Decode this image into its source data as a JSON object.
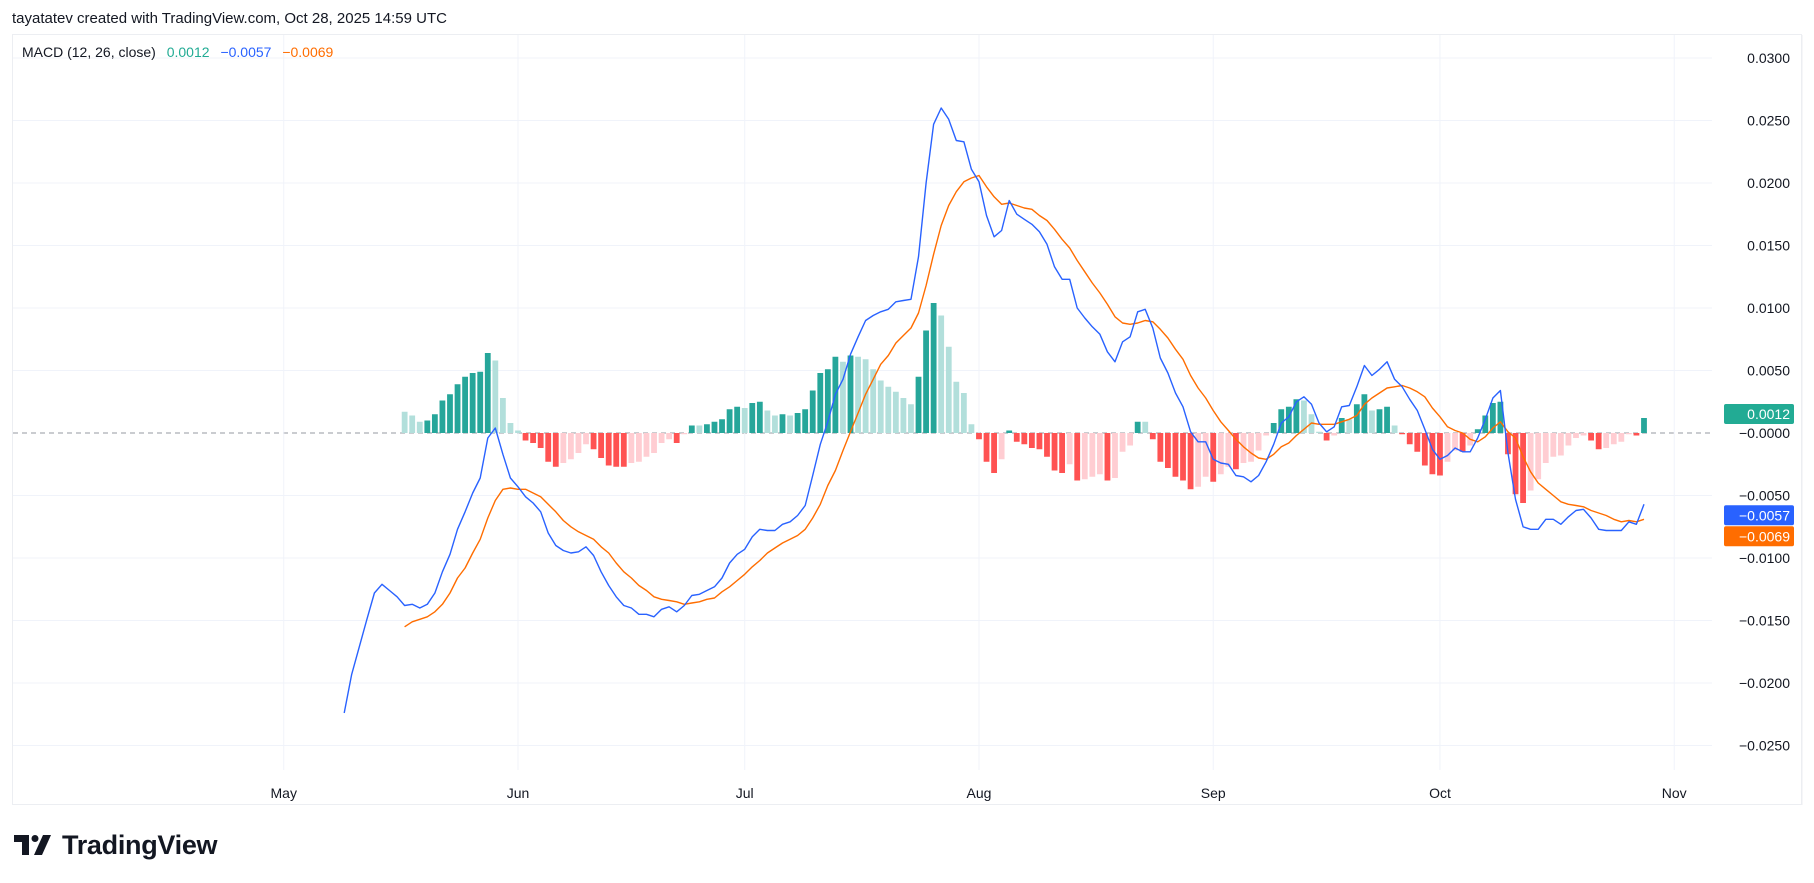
{
  "header": {
    "attribution": "tayatatev created with TradingView.com, Oct 28, 2025 14:59 UTC"
  },
  "legend": {
    "indicator": "MACD (12, 26, close)",
    "histogram_value": "0.0012",
    "macd_value": "−0.0057",
    "signal_value": "−0.0069"
  },
  "brand": {
    "name": "TradingView",
    "icon": "tradingview-logo-icon"
  },
  "colors": {
    "macd": "#2962ff",
    "signal": "#ff6d00",
    "hist_pos_grow": "#26a69a",
    "hist_pos_fall": "#b2dfdb",
    "hist_neg_fall": "#ff5252",
    "hist_neg_grow": "#ffcdd2",
    "last_hist_tag": "#22ab94"
  },
  "price_scale": {
    "last_tags": [
      {
        "label": "0.0012",
        "value": 0.0012,
        "color": "#22ab94"
      },
      {
        "label": "−0.0057",
        "value": -0.0057,
        "color": "#2962ff"
      },
      {
        "label": "−0.0069",
        "value": -0.0069,
        "color": "#ff6d00"
      }
    ]
  },
  "chart_data": {
    "type": "line+bar",
    "title": "MACD (12, 26, close)",
    "ylim": [
      -0.0275,
      0.0315
    ],
    "grid": true,
    "zero_line": "dashed",
    "y_ticks": [
      {
        "value": 0.03,
        "label": "0.0300"
      },
      {
        "value": 0.025,
        "label": "0.0250"
      },
      {
        "value": 0.02,
        "label": "0.0200"
      },
      {
        "value": 0.015,
        "label": "0.0150"
      },
      {
        "value": 0.01,
        "label": "0.0100"
      },
      {
        "value": 0.005,
        "label": "0.0050"
      },
      {
        "value": 0,
        "label": "−0.0000"
      },
      {
        "value": -0.005,
        "label": "−0.0050"
      },
      {
        "value": -0.01,
        "label": "−0.0100"
      },
      {
        "value": -0.015,
        "label": "−0.0150"
      },
      {
        "value": -0.02,
        "label": "−0.0200"
      },
      {
        "value": -0.025,
        "label": "−0.0250"
      }
    ],
    "x_ticks": [
      {
        "date": "2025-05-01",
        "label": "May"
      },
      {
        "date": "2025-06-01",
        "label": "Jun"
      },
      {
        "date": "2025-07-01",
        "label": "Jul"
      },
      {
        "date": "2025-08-01",
        "label": "Aug"
      },
      {
        "date": "2025-09-01",
        "label": "Sep"
      },
      {
        "date": "2025-10-01",
        "label": "Oct"
      },
      {
        "date": "2025-11-01",
        "label": "Nov"
      }
    ],
    "x": [
      "2025-05-09",
      "2025-05-10",
      "2025-05-11",
      "2025-05-12",
      "2025-05-13",
      "2025-05-14",
      "2025-05-15",
      "2025-05-16",
      "2025-05-17",
      "2025-05-18",
      "2025-05-19",
      "2025-05-20",
      "2025-05-21",
      "2025-05-22",
      "2025-05-23",
      "2025-05-24",
      "2025-05-25",
      "2025-05-26",
      "2025-05-27",
      "2025-05-28",
      "2025-05-29",
      "2025-05-30",
      "2025-05-31",
      "2025-06-01",
      "2025-06-02",
      "2025-06-03",
      "2025-06-04",
      "2025-06-05",
      "2025-06-06",
      "2025-06-07",
      "2025-06-08",
      "2025-06-09",
      "2025-06-10",
      "2025-06-11",
      "2025-06-12",
      "2025-06-13",
      "2025-06-14",
      "2025-06-15",
      "2025-06-16",
      "2025-06-17",
      "2025-06-18",
      "2025-06-19",
      "2025-06-20",
      "2025-06-21",
      "2025-06-22",
      "2025-06-23",
      "2025-06-24",
      "2025-06-25",
      "2025-06-26",
      "2025-06-27",
      "2025-06-28",
      "2025-06-29",
      "2025-06-30",
      "2025-07-01",
      "2025-07-02",
      "2025-07-03",
      "2025-07-04",
      "2025-07-05",
      "2025-07-06",
      "2025-07-07",
      "2025-07-08",
      "2025-07-09",
      "2025-07-10",
      "2025-07-11",
      "2025-07-12",
      "2025-07-13",
      "2025-07-14",
      "2025-07-15",
      "2025-07-16",
      "2025-07-17",
      "2025-07-18",
      "2025-07-19",
      "2025-07-20",
      "2025-07-21",
      "2025-07-22",
      "2025-07-23",
      "2025-07-24",
      "2025-07-25",
      "2025-07-26",
      "2025-07-27",
      "2025-07-28",
      "2025-07-29",
      "2025-07-30",
      "2025-07-31",
      "2025-08-01",
      "2025-08-02",
      "2025-08-03",
      "2025-08-04",
      "2025-08-05",
      "2025-08-06",
      "2025-08-07",
      "2025-08-08",
      "2025-08-09",
      "2025-08-10",
      "2025-08-11",
      "2025-08-12",
      "2025-08-13",
      "2025-08-14",
      "2025-08-15",
      "2025-08-16",
      "2025-08-17",
      "2025-08-18",
      "2025-08-19",
      "2025-08-20",
      "2025-08-21",
      "2025-08-22",
      "2025-08-23",
      "2025-08-24",
      "2025-08-25",
      "2025-08-26",
      "2025-08-27",
      "2025-08-28",
      "2025-08-29",
      "2025-08-30",
      "2025-08-31",
      "2025-09-01",
      "2025-09-02",
      "2025-09-03",
      "2025-09-04",
      "2025-09-05",
      "2025-09-06",
      "2025-09-07",
      "2025-09-08",
      "2025-09-09",
      "2025-09-10",
      "2025-09-11",
      "2025-09-12",
      "2025-09-13",
      "2025-09-14",
      "2025-09-15",
      "2025-09-16",
      "2025-09-17",
      "2025-09-18",
      "2025-09-19",
      "2025-09-20",
      "2025-09-21",
      "2025-09-22",
      "2025-09-23",
      "2025-09-24",
      "2025-09-25",
      "2025-09-26",
      "2025-09-27",
      "2025-09-28",
      "2025-09-29",
      "2025-09-30",
      "2025-10-01",
      "2025-10-02",
      "2025-10-03",
      "2025-10-04",
      "2025-10-05",
      "2025-10-06",
      "2025-10-07",
      "2025-10-08",
      "2025-10-09",
      "2025-10-10",
      "2025-10-11",
      "2025-10-12",
      "2025-10-13",
      "2025-10-14",
      "2025-10-15",
      "2025-10-16",
      "2025-10-17",
      "2025-10-18",
      "2025-10-19",
      "2025-10-20",
      "2025-10-21",
      "2025-10-22",
      "2025-10-23",
      "2025-10-24",
      "2025-10-25",
      "2025-10-26",
      "2025-10-27",
      "2025-10-28"
    ],
    "series": [
      {
        "name": "MACD",
        "kind": "line",
        "color": "#2962ff",
        "values": [
          -0.0224,
          -0.0193,
          -0.0171,
          -0.0149,
          -0.0128,
          -0.0121,
          -0.0126,
          -0.0131,
          -0.0138,
          -0.0137,
          -0.014,
          -0.0137,
          -0.0128,
          -0.0111,
          -0.0097,
          -0.0077,
          -0.0063,
          -0.0048,
          -0.0036,
          -0.0004,
          0.0004,
          -0.0017,
          -0.0036,
          -0.0043,
          -0.0051,
          -0.0056,
          -0.0063,
          -0.008,
          -0.009,
          -0.0094,
          -0.0096,
          -0.0095,
          -0.0091,
          -0.0098,
          -0.0111,
          -0.0122,
          -0.0131,
          -0.0138,
          -0.014,
          -0.0145,
          -0.0145,
          -0.0147,
          -0.0141,
          -0.0139,
          -0.0143,
          -0.0138,
          -0.013,
          -0.0129,
          -0.0126,
          -0.0123,
          -0.0116,
          -0.0104,
          -0.0097,
          -0.0093,
          -0.0083,
          -0.0077,
          -0.0078,
          -0.0078,
          -0.0073,
          -0.0071,
          -0.0066,
          -0.0058,
          -0.0034,
          -0.0009,
          0.0009,
          0.0031,
          0.0043,
          0.0063,
          0.0077,
          0.009,
          0.0094,
          0.0097,
          0.0099,
          0.0105,
          0.0106,
          0.0107,
          0.0141,
          0.02,
          0.0247,
          0.026,
          0.0251,
          0.0234,
          0.0233,
          0.0211,
          0.0201,
          0.0174,
          0.0157,
          0.0162,
          0.0186,
          0.0175,
          0.0171,
          0.0167,
          0.0161,
          0.0151,
          0.0133,
          0.0123,
          0.0123,
          0.01,
          0.0092,
          0.0085,
          0.0079,
          0.0065,
          0.0057,
          0.0073,
          0.0077,
          0.0097,
          0.0099,
          0.0084,
          0.006,
          0.0048,
          0.0032,
          0.0021,
          0.0001,
          -0.0007,
          -0.0007,
          -0.0021,
          -0.0024,
          -0.0025,
          -0.0034,
          -0.0035,
          -0.0039,
          -0.0034,
          -0.0023,
          -0.0009,
          0.0008,
          0.0013,
          0.0025,
          0.0029,
          0.0023,
          0.0008,
          0.0001,
          0.0005,
          0.0021,
          0.0022,
          0.0037,
          0.0054,
          0.0046,
          0.0051,
          0.0057,
          0.0043,
          0.0037,
          0.0027,
          0.0018,
          0.0003,
          -0.0013,
          -0.0021,
          -0.0018,
          -0.0012,
          -0.0015,
          -0.0015,
          -0.0004,
          0.0011,
          0.0028,
          0.0034,
          -0.0016,
          -0.0053,
          -0.0075,
          -0.0077,
          -0.0077,
          -0.0069,
          -0.0069,
          -0.0073,
          -0.0067,
          -0.0062,
          -0.0061,
          -0.0068,
          -0.0077,
          -0.0078,
          -0.0078,
          -0.0078,
          -0.0071,
          -0.0073,
          -0.0057
        ]
      },
      {
        "name": "Signal",
        "kind": "line",
        "color": "#ff6d00",
        "values": [
          null,
          null,
          null,
          null,
          null,
          null,
          null,
          null,
          -0.0155,
          -0.0151,
          -0.0149,
          -0.0147,
          -0.0143,
          -0.0137,
          -0.0128,
          -0.0116,
          -0.0108,
          -0.0096,
          -0.0085,
          -0.0068,
          -0.0054,
          -0.0045,
          -0.0044,
          -0.0045,
          -0.0045,
          -0.0048,
          -0.0051,
          -0.0057,
          -0.0063,
          -0.007,
          -0.0075,
          -0.0079,
          -0.0082,
          -0.0085,
          -0.0091,
          -0.0096,
          -0.0104,
          -0.0111,
          -0.0116,
          -0.0122,
          -0.0126,
          -0.0131,
          -0.0133,
          -0.0134,
          -0.0135,
          -0.0137,
          -0.0136,
          -0.0135,
          -0.0133,
          -0.0132,
          -0.0127,
          -0.0123,
          -0.0118,
          -0.0113,
          -0.0107,
          -0.0102,
          -0.0096,
          -0.0092,
          -0.0088,
          -0.0085,
          -0.0082,
          -0.0077,
          -0.0068,
          -0.0057,
          -0.0042,
          -0.003,
          -0.0014,
          0.0001,
          0.0016,
          0.0031,
          0.0043,
          0.0055,
          0.0062,
          0.0072,
          0.0078,
          0.0084,
          0.0096,
          0.0118,
          0.0143,
          0.0166,
          0.0182,
          0.0193,
          0.0201,
          0.0204,
          0.0206,
          0.0197,
          0.0189,
          0.0183,
          0.0184,
          0.0182,
          0.018,
          0.0179,
          0.0174,
          0.017,
          0.0163,
          0.0155,
          0.0148,
          0.0138,
          0.0129,
          0.012,
          0.0112,
          0.0103,
          0.0093,
          0.0088,
          0.0087,
          0.0088,
          0.009,
          0.0089,
          0.0083,
          0.0076,
          0.0067,
          0.0059,
          0.0046,
          0.0036,
          0.0028,
          0.0018,
          0.0009,
          0.0002,
          -0.0005,
          -0.0011,
          -0.0016,
          -0.002,
          -0.0021,
          -0.0017,
          -0.0011,
          -0.0008,
          -0.0002,
          0.0003,
          0.0008,
          0.0007,
          0.0007,
          0.0007,
          0.0009,
          0.0011,
          0.0014,
          0.0023,
          0.0028,
          0.0032,
          0.0036,
          0.0037,
          0.0038,
          0.0036,
          0.0033,
          0.0029,
          0.002,
          0.0013,
          0.0005,
          0.0002,
          0.0,
          -0.0005,
          -0.0007,
          -0.0003,
          0.0004,
          0.0009,
          0.0001,
          -0.0004,
          -0.0019,
          -0.0031,
          -0.004,
          -0.0045,
          -0.005,
          -0.0055,
          -0.0057,
          -0.0058,
          -0.0059,
          -0.0062,
          -0.0064,
          -0.0066,
          -0.0069,
          -0.0071,
          -0.007,
          -0.0071,
          -0.0069
        ]
      },
      {
        "name": "Histogram",
        "kind": "bar",
        "values": [
          null,
          null,
          null,
          null,
          null,
          null,
          null,
          null,
          0.0017,
          0.0014,
          0.0009,
          0.001,
          0.0015,
          0.0026,
          0.0031,
          0.0039,
          0.0045,
          0.0048,
          0.0049,
          0.0064,
          0.0058,
          0.0028,
          0.0008,
          0.0002,
          -0.0006,
          -0.0008,
          -0.0012,
          -0.0023,
          -0.0027,
          -0.0024,
          -0.0021,
          -0.0016,
          -0.0009,
          -0.0013,
          -0.002,
          -0.0026,
          -0.0027,
          -0.0027,
          -0.0024,
          -0.0023,
          -0.0019,
          -0.0016,
          -0.0008,
          -0.0005,
          -0.0008,
          -0.0001,
          0.0006,
          0.0006,
          0.0007,
          0.0009,
          0.0011,
          0.0019,
          0.0021,
          0.002,
          0.0024,
          0.0025,
          0.0018,
          0.0014,
          0.0015,
          0.0014,
          0.0016,
          0.0019,
          0.0034,
          0.0048,
          0.0051,
          0.0061,
          0.0057,
          0.0062,
          0.0061,
          0.0059,
          0.0051,
          0.0042,
          0.0037,
          0.0033,
          0.0028,
          0.0023,
          0.0045,
          0.0082,
          0.0104,
          0.0094,
          0.0069,
          0.0041,
          0.0032,
          0.0007,
          -0.0005,
          -0.0023,
          -0.0032,
          -0.0021,
          0.0002,
          -0.0007,
          -0.0009,
          -0.0012,
          -0.0013,
          -0.0019,
          -0.003,
          -0.0032,
          -0.0025,
          -0.0038,
          -0.0037,
          -0.0035,
          -0.0033,
          -0.0038,
          -0.0036,
          -0.0015,
          -0.001,
          0.0009,
          0.0009,
          -0.0005,
          -0.0023,
          -0.0028,
          -0.0035,
          -0.0038,
          -0.0045,
          -0.0043,
          -0.0035,
          -0.0039,
          -0.0033,
          -0.0027,
          -0.0029,
          -0.0024,
          -0.0023,
          -0.0014,
          -0.0002,
          0.0008,
          0.0019,
          0.0021,
          0.0027,
          0.0026,
          0.0015,
          0.0001,
          -0.0006,
          -0.0002,
          0.0012,
          0.0011,
          0.0023,
          0.0031,
          0.0018,
          0.0019,
          0.0021,
          0.0006,
          -0.0001,
          -0.0009,
          -0.0015,
          -0.0026,
          -0.0033,
          -0.0034,
          -0.0023,
          -0.0014,
          -0.0015,
          -0.001,
          0.0003,
          0.0014,
          0.0024,
          0.0025,
          -0.0017,
          -0.0049,
          -0.0056,
          -0.0046,
          -0.0037,
          -0.0024,
          -0.0019,
          -0.0018,
          -0.001,
          -0.0004,
          -0.0002,
          -0.0006,
          -0.0013,
          -0.0012,
          -0.0009,
          -0.0007,
          -0.0001,
          -0.0002,
          0.0012
        ]
      }
    ]
  }
}
